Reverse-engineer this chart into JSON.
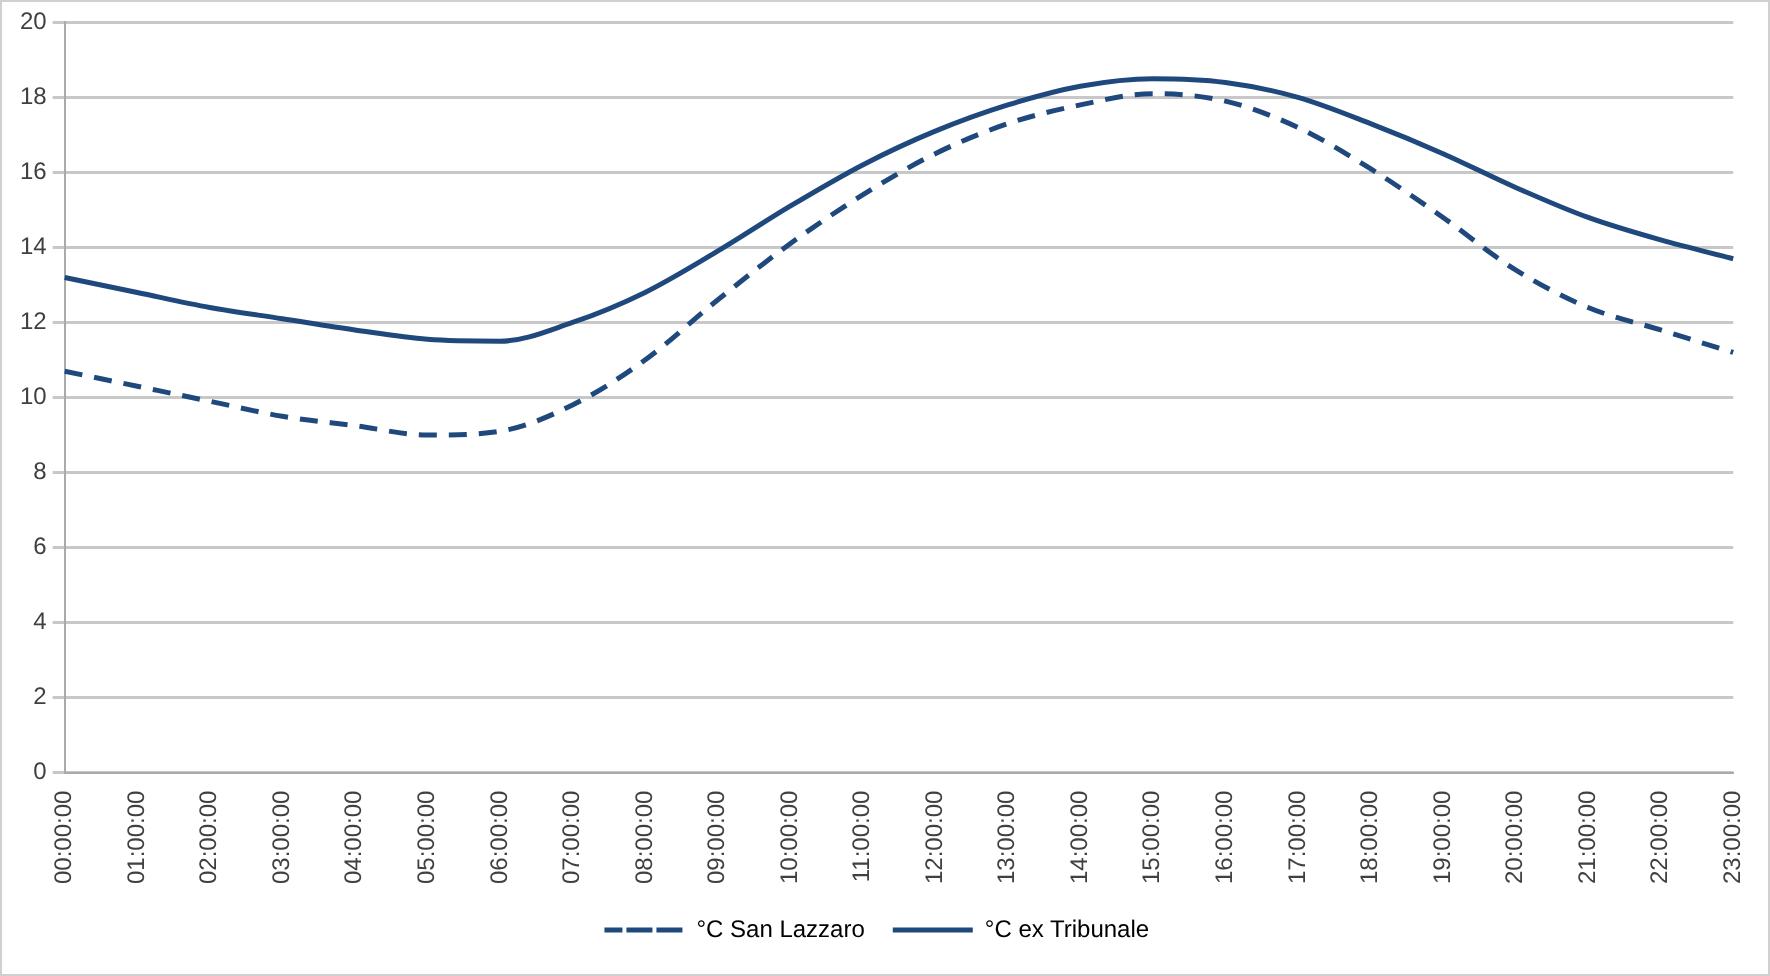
{
  "chart_data": {
    "type": "line",
    "categories": [
      "00:00:00",
      "01:00:00",
      "02:00:00",
      "03:00:00",
      "04:00:00",
      "05:00:00",
      "06:00:00",
      "07:00:00",
      "08:00:00",
      "09:00:00",
      "10:00:00",
      "11:00:00",
      "12:00:00",
      "13:00:00",
      "14:00:00",
      "15:00:00",
      "16:00:00",
      "17:00:00",
      "18:00:00",
      "19:00:00",
      "20:00:00",
      "21:00:00",
      "22:00:00",
      "23:00:00"
    ],
    "series": [
      {
        "name": "°C San Lazzaro",
        "color": "#1f497d",
        "line_style": "dashed",
        "values": [
          10.7,
          10.3,
          9.9,
          9.5,
          9.25,
          9.0,
          9.1,
          9.8,
          11.0,
          12.6,
          14.1,
          15.4,
          16.5,
          17.3,
          17.8,
          18.1,
          17.9,
          17.2,
          16.1,
          14.8,
          13.4,
          12.4,
          11.8,
          11.2
        ]
      },
      {
        "name": "°C ex Tribunale",
        "color": "#1f497d",
        "line_style": "solid",
        "values": [
          13.2,
          12.8,
          12.4,
          12.1,
          11.8,
          11.55,
          11.5,
          12.0,
          12.8,
          13.9,
          15.1,
          16.2,
          17.1,
          17.8,
          18.3,
          18.5,
          18.4,
          18.0,
          17.3,
          16.5,
          15.6,
          14.8,
          14.2,
          13.7
        ]
      }
    ],
    "ylim": [
      0,
      20
    ],
    "yticks": [
      0,
      2,
      4,
      6,
      8,
      10,
      12,
      14,
      16,
      18,
      20
    ],
    "grid": "y",
    "legend": "bottom",
    "marker": "none"
  }
}
